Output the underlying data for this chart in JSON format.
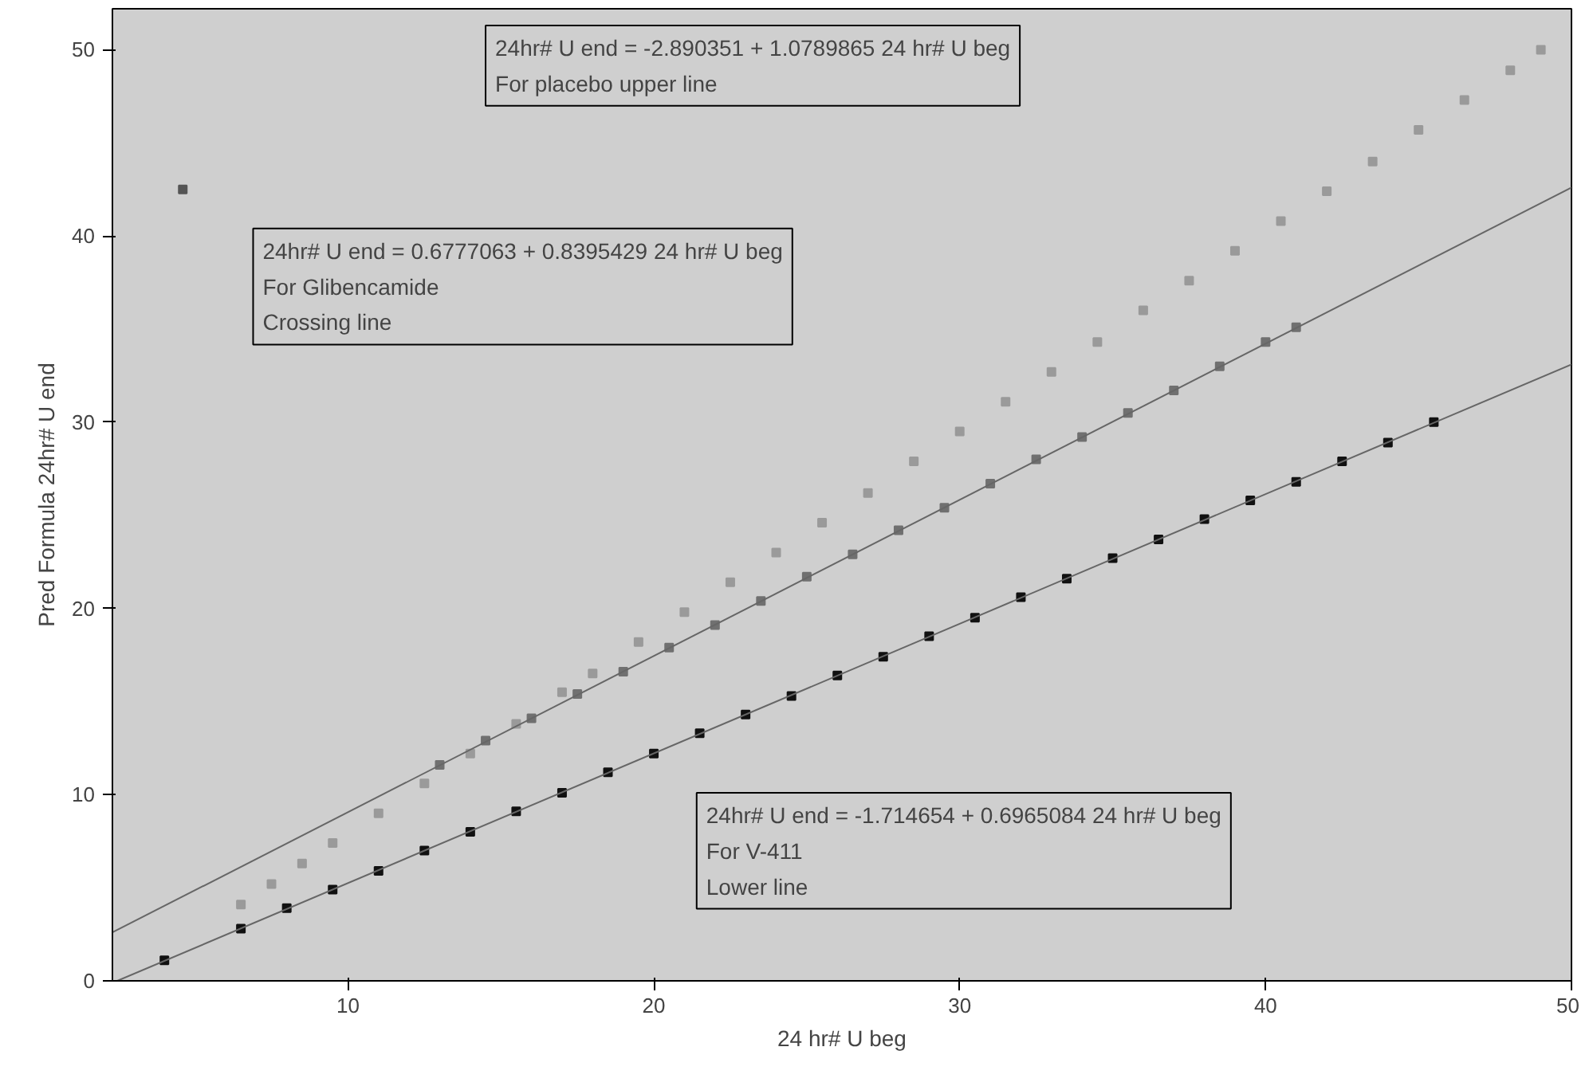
{
  "chart_data": {
    "type": "scatter",
    "xlabel": "24 hr# U beg",
    "ylabel": "Pred Formula 24hr# U end",
    "xlim": [
      2.3,
      50
    ],
    "ylim": [
      0,
      52.2
    ],
    "xticks": [
      10,
      20,
      30,
      40,
      50
    ],
    "yticks": [
      0,
      10,
      20,
      30,
      40,
      50
    ],
    "grid": false,
    "annotations": [
      "24hr# U end = -2.890351 + 1.0789865 24 hr# U beg\nFor placebo upper line",
      "24hr# U end = 0.6777063 + 0.8395429 24 hr# U beg\nFor Glibencamide\nCrossing line",
      "24hr# U end = -1.714654 + 0.6965084 24 hr# U beg\nFor V-411\nLower line"
    ],
    "series": [
      {
        "marker": "square",
        "color": "#9a9a9a",
        "x": [
          6.5,
          7.5,
          8.5,
          9.5,
          11,
          12.5,
          14,
          15.5,
          17,
          18,
          19.5,
          21,
          22.5,
          24,
          25.5,
          27,
          28.5,
          30,
          31.5,
          33,
          34.5,
          36,
          37.5,
          39,
          40.5,
          42,
          43.5,
          45,
          46.5,
          48,
          49
        ],
        "values": [
          4.1,
          5.2,
          6.3,
          7.4,
          9.0,
          10.6,
          12.2,
          13.8,
          15.5,
          16.5,
          18.2,
          19.8,
          21.4,
          23.0,
          24.6,
          26.2,
          27.9,
          29.5,
          31.1,
          32.7,
          34.3,
          36.0,
          37.6,
          39.2,
          40.8,
          42.4,
          44.0,
          45.7,
          47.3,
          48.9,
          50.0
        ]
      },
      {
        "marker": "square",
        "color": "#707070",
        "x": [
          13,
          14.5,
          16,
          17.5,
          19,
          20.5,
          22,
          23.5,
          25,
          26.5,
          28,
          29.5,
          31,
          32.5,
          34,
          35.5,
          37,
          38.5,
          40,
          41
        ],
        "values": [
          11.6,
          12.9,
          14.1,
          15.4,
          16.6,
          17.9,
          19.1,
          20.4,
          21.7,
          22.9,
          24.2,
          25.4,
          26.7,
          28.0,
          29.2,
          30.5,
          31.7,
          33.0,
          34.3,
          35.1
        ]
      },
      {
        "marker": "square",
        "color": "#111111",
        "x": [
          4,
          6.5,
          8,
          9.5,
          11,
          12.5,
          14,
          15.5,
          17,
          18.5,
          20,
          21.5,
          23,
          24.5,
          26,
          27.5,
          29,
          30.5,
          32,
          33.5,
          35,
          36.5,
          38,
          39.5,
          41,
          42.5,
          44,
          45.5
        ],
        "values": [
          1.1,
          2.8,
          3.9,
          4.9,
          5.9,
          7.0,
          8.0,
          9.1,
          10.1,
          11.2,
          12.2,
          13.3,
          14.3,
          15.3,
          16.4,
          17.4,
          18.5,
          19.5,
          20.6,
          21.6,
          22.7,
          23.7,
          24.8,
          25.8,
          26.8,
          27.9,
          28.9,
          30.0
        ]
      },
      {
        "marker": "square",
        "color": "#555555",
        "x": [
          4.6
        ],
        "values": [
          42.5
        ]
      },
      {
        "type": "line",
        "color": "#666666",
        "x": [
          2.3,
          50
        ],
        "values": [
          2.6,
          42.6
        ]
      },
      {
        "type": "line",
        "color": "#666666",
        "x": [
          2.46,
          50
        ],
        "values": [
          0.0,
          33.1
        ]
      }
    ]
  }
}
